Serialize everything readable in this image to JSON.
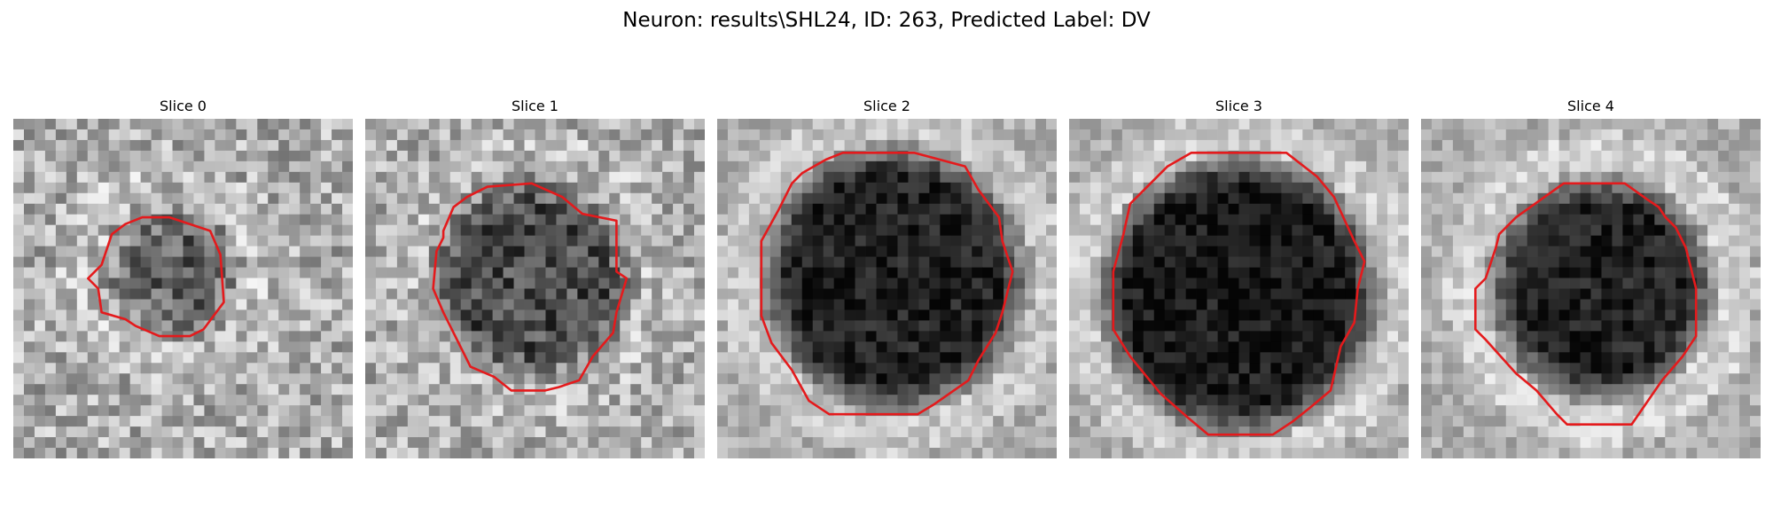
{
  "figure": {
    "title": "Neuron: results\\SHL24, ID: 263, Predicted Label: DV"
  },
  "panels": [
    {
      "title": "Slice 0"
    },
    {
      "title": "Slice 1"
    },
    {
      "title": "Slice 2"
    },
    {
      "title": "Slice 3"
    },
    {
      "title": "Slice 4"
    }
  ],
  "colors": {
    "contour": "#e41a1c"
  }
}
